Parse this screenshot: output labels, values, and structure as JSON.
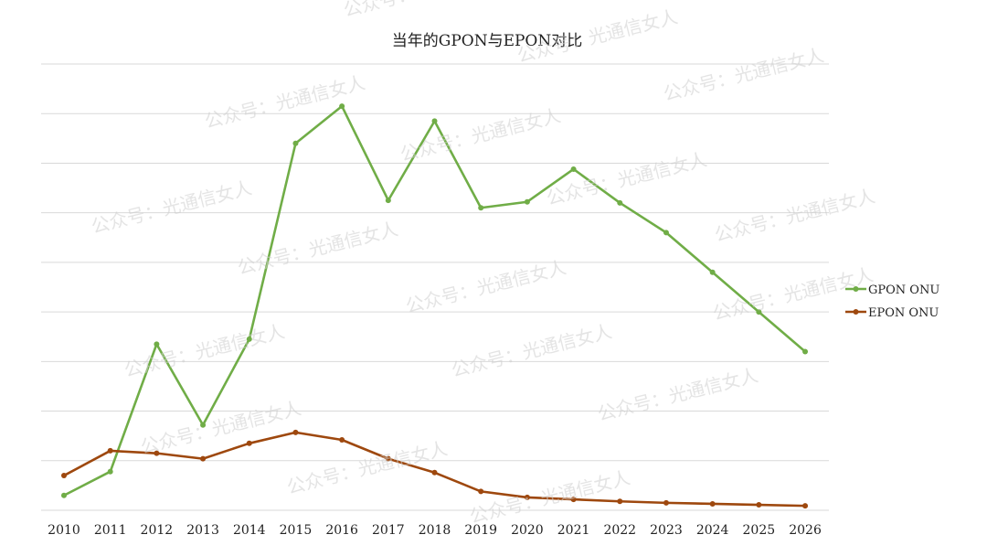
{
  "chart_data": {
    "type": "line",
    "title": "当年的GPON与EPON对比",
    "x": [
      "2010",
      "2011",
      "2012",
      "2013",
      "2014",
      "2015",
      "2016",
      "2017",
      "2018",
      "2019",
      "2020",
      "2021",
      "2022",
      "2023",
      "2024",
      "2025",
      "2026"
    ],
    "ylim": [
      0,
      9
    ],
    "grid": true,
    "legend_position": "right",
    "series": [
      {
        "name": "GPON ONU",
        "color": "#70ad47",
        "values": [
          0.3,
          0.78,
          3.35,
          1.72,
          3.45,
          7.4,
          8.15,
          6.25,
          7.85,
          6.1,
          6.22,
          6.88,
          6.2,
          5.6,
          4.8,
          4.0,
          3.2
        ]
      },
      {
        "name": "EPON ONU",
        "color": "#9e480e",
        "values": [
          0.7,
          1.2,
          1.15,
          1.04,
          1.35,
          1.57,
          1.42,
          1.04,
          0.76,
          0.38,
          0.26,
          0.22,
          0.18,
          0.15,
          0.13,
          0.11,
          0.09
        ]
      }
    ]
  },
  "watermark": "公众号：光通信女人"
}
